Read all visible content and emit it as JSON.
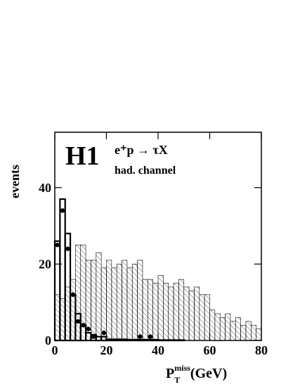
{
  "chart_data": {
    "type": "histogram",
    "label_main": "H1",
    "process": "e⁺p → τX",
    "channel": "had. channel",
    "y_label": "events",
    "x_label": {
      "main": "P",
      "sub": "T",
      "sup": "miss",
      "unit": "(GeV)"
    },
    "bins": [
      0,
      2,
      4,
      6,
      8,
      10,
      12,
      14,
      16,
      18,
      20,
      22,
      24,
      26,
      28,
      30,
      32,
      34,
      36,
      38,
      40,
      42,
      44,
      46,
      48,
      50,
      52,
      54,
      56,
      58,
      60,
      62,
      64,
      66,
      68,
      70,
      72,
      74,
      76,
      78,
      80
    ],
    "series": [
      {
        "style": "hatched",
        "color": "#000000",
        "values": [
          12,
          11,
          14,
          16,
          25,
          25,
          21,
          21,
          23,
          19,
          21,
          19,
          20,
          21,
          19,
          20,
          21,
          16,
          16,
          15,
          17,
          15,
          14,
          15,
          16,
          14,
          13,
          14,
          12,
          12,
          8,
          7,
          6,
          7,
          5,
          6,
          4,
          5,
          4,
          3
        ]
      },
      {
        "style": "thick",
        "color": "#000000",
        "values": [
          26,
          37,
          28,
          12,
          7,
          4,
          2,
          1.5,
          1,
          1,
          0.3,
          0.3,
          0.3,
          0.3,
          0.2,
          0.2,
          0.2,
          0.2,
          0.2,
          0.2,
          0.1,
          0.1,
          0.1,
          0.1,
          0.1,
          0,
          0,
          0,
          0,
          0,
          0,
          0,
          0,
          0,
          0,
          0,
          0,
          0,
          0,
          0
        ]
      }
    ],
    "points": {
      "color": "#000000",
      "x": [
        1,
        3,
        5,
        7,
        9,
        11,
        13,
        15,
        19,
        33,
        37
      ],
      "values": [
        25,
        34,
        24,
        12,
        5,
        4,
        3,
        1,
        2,
        1,
        1
      ]
    },
    "xlim": [
      0,
      80
    ],
    "ylim": [
      0,
      54.5
    ],
    "xticks": [
      0,
      20,
      40,
      60,
      80
    ],
    "yticks": [
      0,
      20,
      40
    ]
  }
}
